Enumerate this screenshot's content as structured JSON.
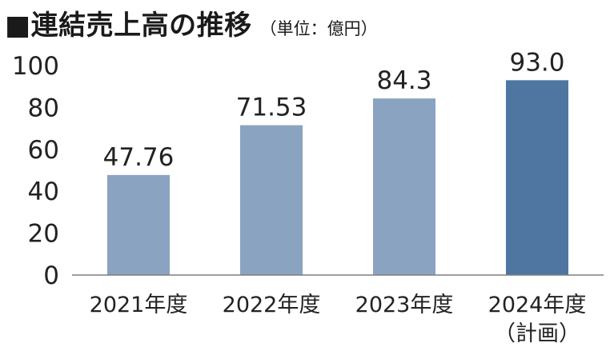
{
  "title": "■連結売上高の推移",
  "unit_label": "（単位：億円）",
  "chart_data": {
    "type": "bar",
    "title": "■連結売上高の推移",
    "unit": "（単位：億円）",
    "categories": [
      "2021年度",
      "2022年度",
      "2023年度",
      "2024年度"
    ],
    "category_sublabels": [
      "",
      "",
      "",
      "（計画）"
    ],
    "values": [
      47.76,
      71.53,
      84.3,
      93.0
    ],
    "value_labels": [
      "47.76",
      "71.53",
      "84.3",
      "93.0"
    ],
    "yticks": [
      "0",
      "20",
      "40",
      "60",
      "80",
      "100"
    ],
    "ylim": [
      0,
      100
    ],
    "grid": false,
    "bar_colors": [
      "#8aa3c0",
      "#8aa3c0",
      "#8aa3c0",
      "#4e76a0"
    ],
    "axis_color": "#7f7f7f"
  }
}
